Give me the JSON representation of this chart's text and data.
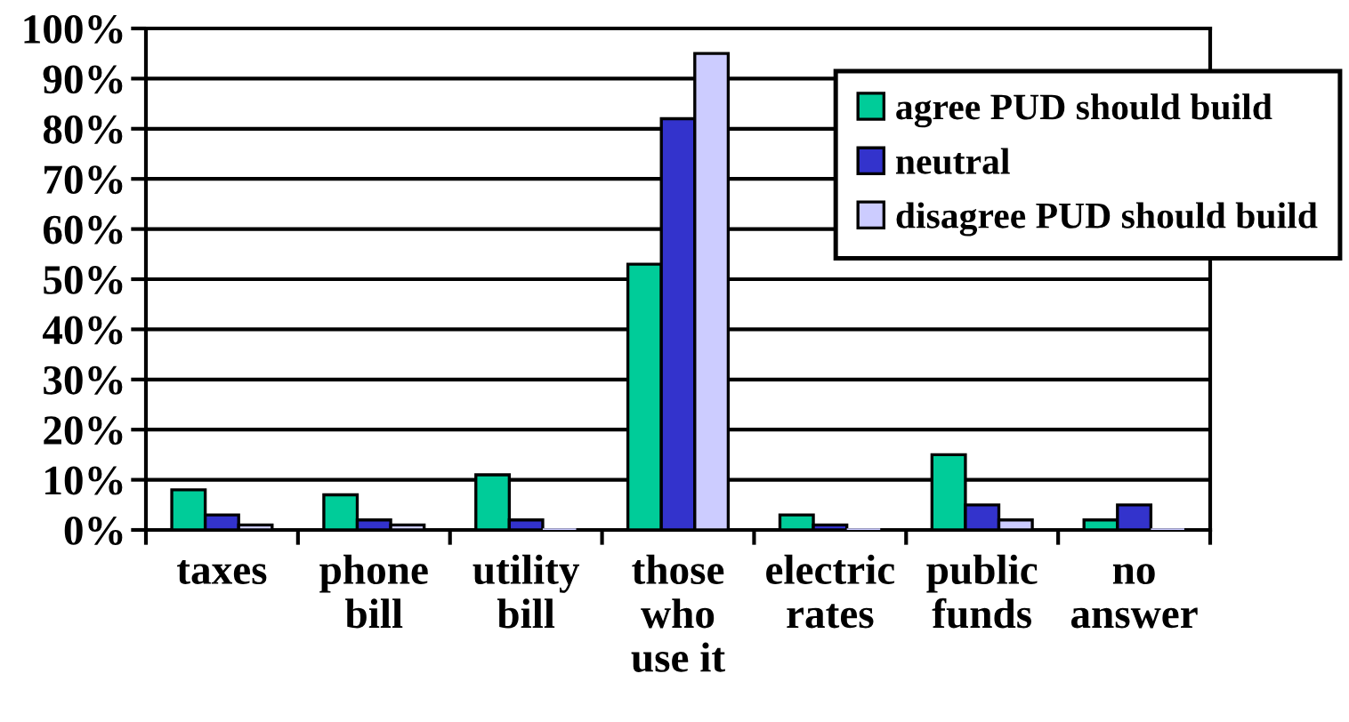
{
  "chart_data": {
    "type": "bar",
    "categories": [
      "taxes",
      "phone bill",
      "utility bill",
      "those who use it",
      "electric rates",
      "public funds",
      "no answer"
    ],
    "series": [
      {
        "name": "agree PUD should build",
        "color": "#00cc99",
        "values": [
          8,
          7,
          11,
          53,
          3,
          15,
          2
        ]
      },
      {
        "name": "neutral",
        "color": "#3333cc",
        "values": [
          3,
          2,
          2,
          82,
          1,
          5,
          5
        ]
      },
      {
        "name": "disagree PUD should build",
        "color": "#ccccff",
        "values": [
          1,
          1,
          0,
          95,
          0,
          2,
          0
        ]
      }
    ],
    "ylim": [
      0,
      100
    ],
    "yticks": [
      {
        "value": 0,
        "label": "0%"
      },
      {
        "value": 10,
        "label": "10%"
      },
      {
        "value": 20,
        "label": "20%"
      },
      {
        "value": 30,
        "label": "30%"
      },
      {
        "value": 40,
        "label": "40%"
      },
      {
        "value": 50,
        "label": "50%"
      },
      {
        "value": 60,
        "label": "60%"
      },
      {
        "value": 70,
        "label": "70%"
      },
      {
        "value": 80,
        "label": "80%"
      },
      {
        "value": 90,
        "label": "90%"
      },
      {
        "value": 100,
        "label": "100%"
      }
    ],
    "grid": "y",
    "legend": "top right"
  }
}
